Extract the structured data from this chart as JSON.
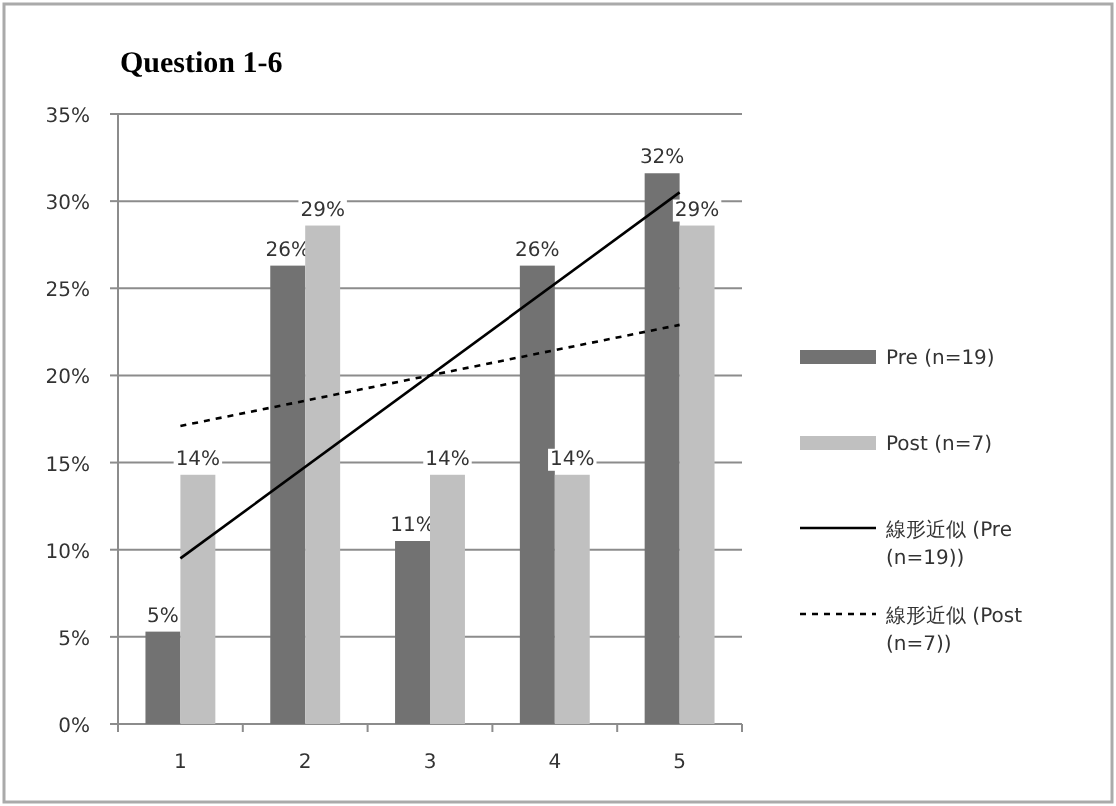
{
  "chart_data": {
    "type": "bar",
    "title": "Question 1-6",
    "categories": [
      "1",
      "2",
      "3",
      "4",
      "5"
    ],
    "series": [
      {
        "name": "Pre (n=19)",
        "color": "#727272",
        "values": [
          5.3,
          26.3,
          10.5,
          26.3,
          31.6
        ],
        "value_labels": [
          "5%",
          "26%",
          "11%",
          "26%",
          "32%"
        ]
      },
      {
        "name": "Post (n=7)",
        "color": "#c0c0c0",
        "values": [
          14.3,
          28.6,
          14.3,
          14.3,
          28.6
        ],
        "value_labels": [
          "14%",
          "29%",
          "14%",
          "14%",
          "29%"
        ]
      },
      {
        "name": "線形近似 (Pre (n=19))",
        "type": "line",
        "color": "#000000",
        "line_style": "solid",
        "x": [
          "1",
          "5"
        ],
        "values": [
          9.5,
          30.5
        ]
      },
      {
        "name": "線形近似 (Post (n=7))",
        "type": "line",
        "color": "#000000",
        "line_style": "dotted",
        "x": [
          "1",
          "5"
        ],
        "values": [
          17.1,
          22.9
        ]
      }
    ],
    "ylim": [
      0,
      35
    ],
    "yticks": [
      {
        "value": 0,
        "label": "0%"
      },
      {
        "value": 5,
        "label": "5%"
      },
      {
        "value": 10,
        "label": "10%"
      },
      {
        "value": 15,
        "label": "15%"
      },
      {
        "value": 20,
        "label": "20%"
      },
      {
        "value": 25,
        "label": "25%"
      },
      {
        "value": 30,
        "label": "30%"
      },
      {
        "value": 35,
        "label": "35%"
      }
    ],
    "grid": "y",
    "legend": "right"
  }
}
